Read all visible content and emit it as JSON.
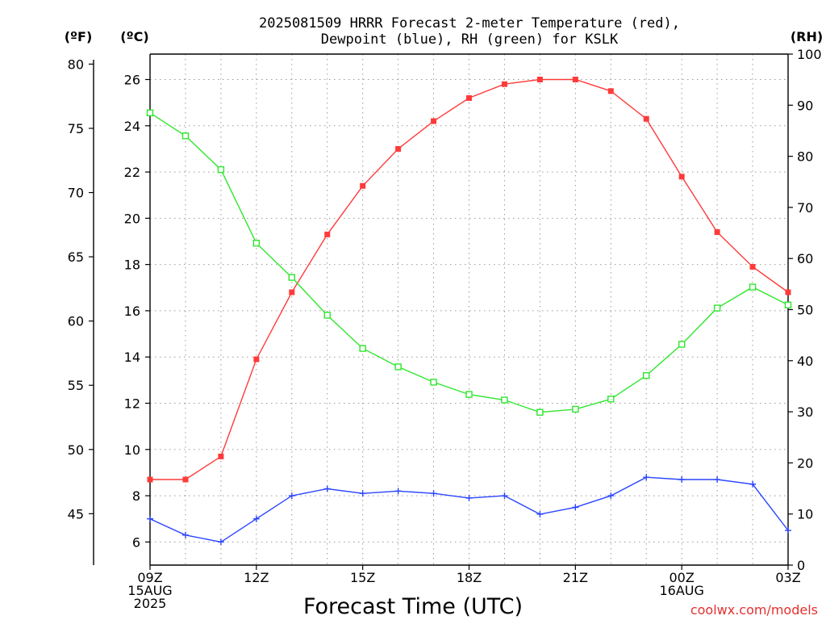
{
  "chart_data": {
    "type": "line",
    "title": "2025081509 HRRR Forecast 2-meter Temperature (red),",
    "subtitle": "Dewpoint (blue), RH (green) for KSLK",
    "xlabel": "Forecast Time (UTC)",
    "watermark": "coolwx.com/models",
    "unit_labels": {
      "fahrenheit": "(ºF)",
      "celsius": "(ºC)",
      "rh": "(RH)"
    },
    "xlim": [
      9,
      27
    ],
    "x": [
      9,
      10,
      11,
      12,
      13,
      14,
      15,
      16,
      17,
      18,
      19,
      20,
      21,
      22,
      23,
      24,
      25,
      26,
      27
    ],
    "x_ticks": [
      {
        "x": 9,
        "lines": [
          "09Z",
          "15AUG",
          "2025"
        ]
      },
      {
        "x": 12,
        "lines": [
          "12Z"
        ]
      },
      {
        "x": 15,
        "lines": [
          "15Z"
        ]
      },
      {
        "x": 18,
        "lines": [
          "18Z"
        ]
      },
      {
        "x": 21,
        "lines": [
          "21Z"
        ]
      },
      {
        "x": 24,
        "lines": [
          "00Z",
          "16AUG"
        ]
      },
      {
        "x": 27,
        "lines": [
          "03Z"
        ]
      }
    ],
    "ylim_celsius": [
      5,
      27.1
    ],
    "ylim_fahrenheit": [
      41,
      80.78
    ],
    "ylim_rh": [
      0,
      100
    ],
    "celsius_ticks": [
      6,
      8,
      10,
      12,
      14,
      16,
      18,
      20,
      22,
      24,
      26
    ],
    "fahrenheit_ticks": [
      45,
      50,
      55,
      60,
      65,
      70,
      75,
      80
    ],
    "rh_ticks": [
      0,
      10,
      20,
      30,
      40,
      50,
      60,
      70,
      80,
      90,
      100
    ],
    "grid": true,
    "series": [
      {
        "name": "Temperature (red)",
        "axis": "celsius",
        "color": "#ff3a3a",
        "marker": "filled-square",
        "values": [
          8.7,
          8.7,
          9.7,
          13.9,
          16.8,
          19.3,
          21.4,
          23.0,
          24.2,
          25.2,
          25.8,
          26.0,
          26.0,
          25.5,
          24.3,
          21.8,
          19.4,
          17.9,
          16.8
        ]
      },
      {
        "name": "Dewpoint (blue)",
        "axis": "celsius",
        "color": "#2b45ff",
        "marker": "plus",
        "values": [
          7.0,
          6.3,
          6.0,
          7.0,
          8.0,
          8.3,
          8.1,
          8.2,
          8.1,
          7.9,
          8.0,
          7.2,
          7.5,
          8.0,
          8.8,
          8.7,
          8.7,
          8.5,
          6.5
        ]
      },
      {
        "name": "RH (green)",
        "axis": "rh",
        "color": "#2ee62e",
        "marker": "open-square",
        "values": [
          88.5,
          84,
          77.4,
          63,
          56.3,
          48.9,
          42.4,
          38.8,
          35.8,
          33.4,
          32.3,
          29.9,
          30.5,
          32.5,
          37.1,
          43.2,
          50.3,
          54.4,
          50.9
        ]
      }
    ]
  }
}
